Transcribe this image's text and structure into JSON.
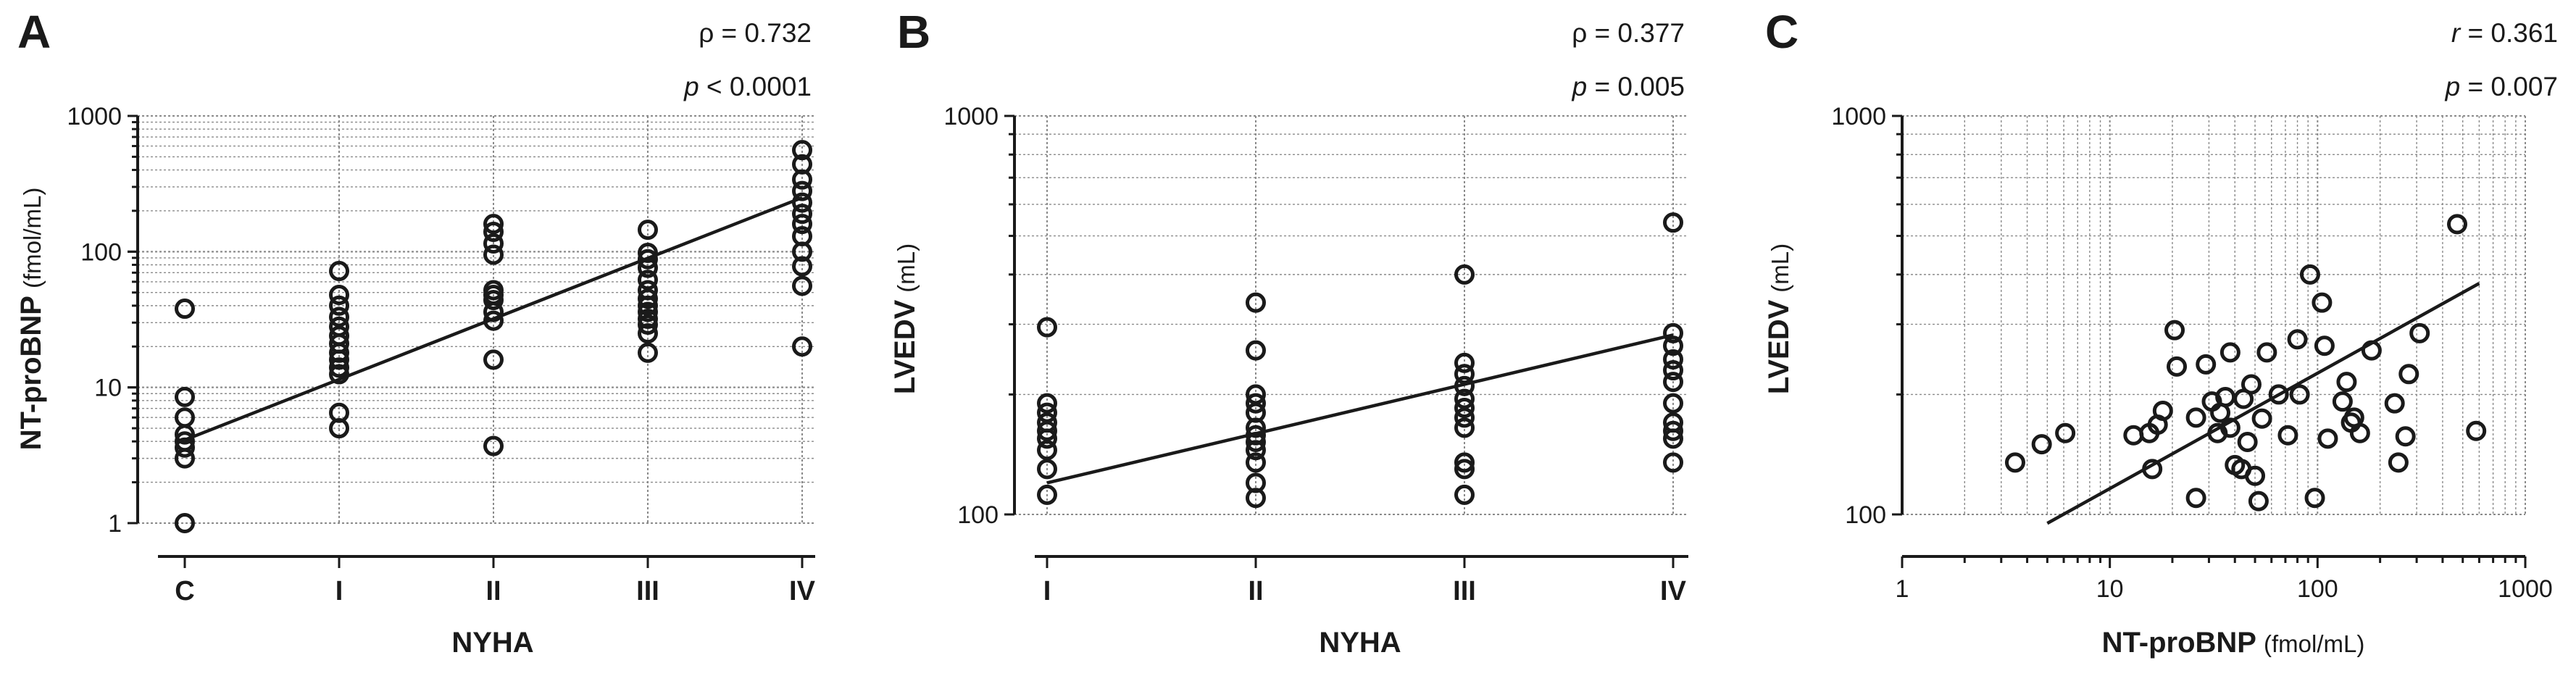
{
  "chart_data": [
    {
      "panel": "A",
      "type": "scatter",
      "ylog": true,
      "ylim": [
        1,
        1000
      ],
      "y_ticks": [
        1,
        10,
        100,
        1000
      ],
      "y_tick_labels": [
        "1",
        "10",
        "100",
        "1000"
      ],
      "categories": [
        "C",
        "I",
        "II",
        "III",
        "IV"
      ],
      "xlabel": "NYHA",
      "ylabel": "NT-proBNP",
      "ylabel_unit": "(fmol/mL)",
      "stat_rho": "ρ = 0.732",
      "stat_p_symbol": "p",
      "stat_p_value": " < 0.0001",
      "regression": {
        "x": [
          0,
          4
        ],
        "y": [
          4.1,
          250
        ]
      },
      "points": [
        {
          "x": 0,
          "y": 38
        },
        {
          "x": 0,
          "y": 8.5
        },
        {
          "x": 0,
          "y": 6
        },
        {
          "x": 0,
          "y": 4.5
        },
        {
          "x": 0,
          "y": 4
        },
        {
          "x": 0,
          "y": 3.6
        },
        {
          "x": 0,
          "y": 3
        },
        {
          "x": 0,
          "y": 1
        },
        {
          "x": 1,
          "y": 72
        },
        {
          "x": 1,
          "y": 48
        },
        {
          "x": 1,
          "y": 40
        },
        {
          "x": 1,
          "y": 33
        },
        {
          "x": 1,
          "y": 28
        },
        {
          "x": 1,
          "y": 24
        },
        {
          "x": 1,
          "y": 21
        },
        {
          "x": 1,
          "y": 18
        },
        {
          "x": 1,
          "y": 16
        },
        {
          "x": 1,
          "y": 14
        },
        {
          "x": 1,
          "y": 12.5
        },
        {
          "x": 1,
          "y": 6.5
        },
        {
          "x": 1,
          "y": 5
        },
        {
          "x": 2,
          "y": 160
        },
        {
          "x": 2,
          "y": 140
        },
        {
          "x": 2,
          "y": 115
        },
        {
          "x": 2,
          "y": 95
        },
        {
          "x": 2,
          "y": 52
        },
        {
          "x": 2,
          "y": 48
        },
        {
          "x": 2,
          "y": 44
        },
        {
          "x": 2,
          "y": 36
        },
        {
          "x": 2,
          "y": 31
        },
        {
          "x": 2,
          "y": 16
        },
        {
          "x": 2,
          "y": 3.7
        },
        {
          "x": 3,
          "y": 145
        },
        {
          "x": 3,
          "y": 98
        },
        {
          "x": 3,
          "y": 88
        },
        {
          "x": 3,
          "y": 76
        },
        {
          "x": 3,
          "y": 62
        },
        {
          "x": 3,
          "y": 52
        },
        {
          "x": 3,
          "y": 45
        },
        {
          "x": 3,
          "y": 40
        },
        {
          "x": 3,
          "y": 36
        },
        {
          "x": 3,
          "y": 32
        },
        {
          "x": 3,
          "y": 29
        },
        {
          "x": 3,
          "y": 25
        },
        {
          "x": 3,
          "y": 18
        },
        {
          "x": 4,
          "y": 560
        },
        {
          "x": 4,
          "y": 440
        },
        {
          "x": 4,
          "y": 340
        },
        {
          "x": 4,
          "y": 280
        },
        {
          "x": 4,
          "y": 230
        },
        {
          "x": 4,
          "y": 190
        },
        {
          "x": 4,
          "y": 160
        },
        {
          "x": 4,
          "y": 130
        },
        {
          "x": 4,
          "y": 100
        },
        {
          "x": 4,
          "y": 78
        },
        {
          "x": 4,
          "y": 56
        },
        {
          "x": 4,
          "y": 20
        }
      ]
    },
    {
      "panel": "B",
      "type": "scatter",
      "ylog": true,
      "ylim": [
        100,
        1000
      ],
      "y_ticks": [
        100,
        1000
      ],
      "y_tick_labels": [
        "100",
        "1000"
      ],
      "categories": [
        "I",
        "II",
        "III",
        "IV"
      ],
      "xlabel": "NYHA",
      "ylabel": "LVEDV",
      "ylabel_unit": "(mL)",
      "stat_rho": "ρ = 0.377",
      "stat_p_symbol": "p",
      "stat_p_value": " = 0.005",
      "regression": {
        "x": [
          0,
          3
        ],
        "y": [
          120,
          282
        ]
      },
      "points": [
        {
          "x": 0,
          "y": 295
        },
        {
          "x": 0,
          "y": 190
        },
        {
          "x": 0,
          "y": 180
        },
        {
          "x": 0,
          "y": 170
        },
        {
          "x": 0,
          "y": 162
        },
        {
          "x": 0,
          "y": 155
        },
        {
          "x": 0,
          "y": 145
        },
        {
          "x": 0,
          "y": 130
        },
        {
          "x": 0,
          "y": 112
        },
        {
          "x": 1,
          "y": 340
        },
        {
          "x": 1,
          "y": 258
        },
        {
          "x": 1,
          "y": 200
        },
        {
          "x": 1,
          "y": 190
        },
        {
          "x": 1,
          "y": 180
        },
        {
          "x": 1,
          "y": 165
        },
        {
          "x": 1,
          "y": 158
        },
        {
          "x": 1,
          "y": 152
        },
        {
          "x": 1,
          "y": 145
        },
        {
          "x": 1,
          "y": 135
        },
        {
          "x": 1,
          "y": 120
        },
        {
          "x": 1,
          "y": 110
        },
        {
          "x": 2,
          "y": 400
        },
        {
          "x": 2,
          "y": 240
        },
        {
          "x": 2,
          "y": 225
        },
        {
          "x": 2,
          "y": 210
        },
        {
          "x": 2,
          "y": 195
        },
        {
          "x": 2,
          "y": 185
        },
        {
          "x": 2,
          "y": 175
        },
        {
          "x": 2,
          "y": 165
        },
        {
          "x": 2,
          "y": 135
        },
        {
          "x": 2,
          "y": 130
        },
        {
          "x": 2,
          "y": 112
        },
        {
          "x": 3,
          "y": 540
        },
        {
          "x": 3,
          "y": 285
        },
        {
          "x": 3,
          "y": 265
        },
        {
          "x": 3,
          "y": 245
        },
        {
          "x": 3,
          "y": 230
        },
        {
          "x": 3,
          "y": 215
        },
        {
          "x": 3,
          "y": 190
        },
        {
          "x": 3,
          "y": 170
        },
        {
          "x": 3,
          "y": 162
        },
        {
          "x": 3,
          "y": 155
        },
        {
          "x": 3,
          "y": 135
        }
      ]
    },
    {
      "panel": "C",
      "type": "scatter",
      "xlog": true,
      "ylog": true,
      "xlim": [
        1,
        1000
      ],
      "ylim": [
        100,
        1000
      ],
      "x_ticks": [
        1,
        10,
        100,
        1000
      ],
      "x_tick_labels": [
        "1",
        "10",
        "100",
        "1000"
      ],
      "y_ticks": [
        100,
        1000
      ],
      "y_tick_labels": [
        "100",
        "1000"
      ],
      "xlabel": "NT-proBNP",
      "xlabel_unit": "(fmol/mL)",
      "ylabel": "LVEDV",
      "ylabel_unit": "(mL)",
      "stat_r_symbol": "r",
      "stat_r_value": " = 0.361",
      "stat_p_symbol": "p",
      "stat_p_value": " = 0.007",
      "regression": {
        "x": [
          5,
          600
        ],
        "y": [
          95,
          380
        ]
      },
      "points": [
        {
          "x": 3.5,
          "y": 135
        },
        {
          "x": 4.7,
          "y": 150
        },
        {
          "x": 6.1,
          "y": 160
        },
        {
          "x": 13,
          "y": 158
        },
        {
          "x": 15.5,
          "y": 160
        },
        {
          "x": 17,
          "y": 168
        },
        {
          "x": 16,
          "y": 130
        },
        {
          "x": 18,
          "y": 182
        },
        {
          "x": 20.5,
          "y": 290
        },
        {
          "x": 21,
          "y": 235
        },
        {
          "x": 26,
          "y": 110
        },
        {
          "x": 26,
          "y": 175
        },
        {
          "x": 29,
          "y": 238
        },
        {
          "x": 31,
          "y": 192
        },
        {
          "x": 33,
          "y": 160
        },
        {
          "x": 34,
          "y": 180
        },
        {
          "x": 36,
          "y": 197
        },
        {
          "x": 38,
          "y": 255
        },
        {
          "x": 38,
          "y": 165
        },
        {
          "x": 40,
          "y": 133
        },
        {
          "x": 43,
          "y": 130
        },
        {
          "x": 44,
          "y": 195
        },
        {
          "x": 46,
          "y": 152
        },
        {
          "x": 48,
          "y": 212
        },
        {
          "x": 50,
          "y": 125
        },
        {
          "x": 52,
          "y": 108
        },
        {
          "x": 54,
          "y": 174
        },
        {
          "x": 57,
          "y": 255
        },
        {
          "x": 65,
          "y": 200
        },
        {
          "x": 72,
          "y": 158
        },
        {
          "x": 80,
          "y": 275
        },
        {
          "x": 82,
          "y": 200
        },
        {
          "x": 92,
          "y": 400
        },
        {
          "x": 97,
          "y": 110
        },
        {
          "x": 105,
          "y": 340
        },
        {
          "x": 108,
          "y": 265
        },
        {
          "x": 112,
          "y": 155
        },
        {
          "x": 132,
          "y": 192
        },
        {
          "x": 138,
          "y": 215
        },
        {
          "x": 145,
          "y": 170
        },
        {
          "x": 150,
          "y": 175
        },
        {
          "x": 160,
          "y": 160
        },
        {
          "x": 182,
          "y": 258
        },
        {
          "x": 235,
          "y": 190
        },
        {
          "x": 245,
          "y": 135
        },
        {
          "x": 265,
          "y": 157
        },
        {
          "x": 275,
          "y": 225
        },
        {
          "x": 310,
          "y": 285
        },
        {
          "x": 470,
          "y": 535
        },
        {
          "x": 580,
          "y": 162
        }
      ]
    }
  ]
}
